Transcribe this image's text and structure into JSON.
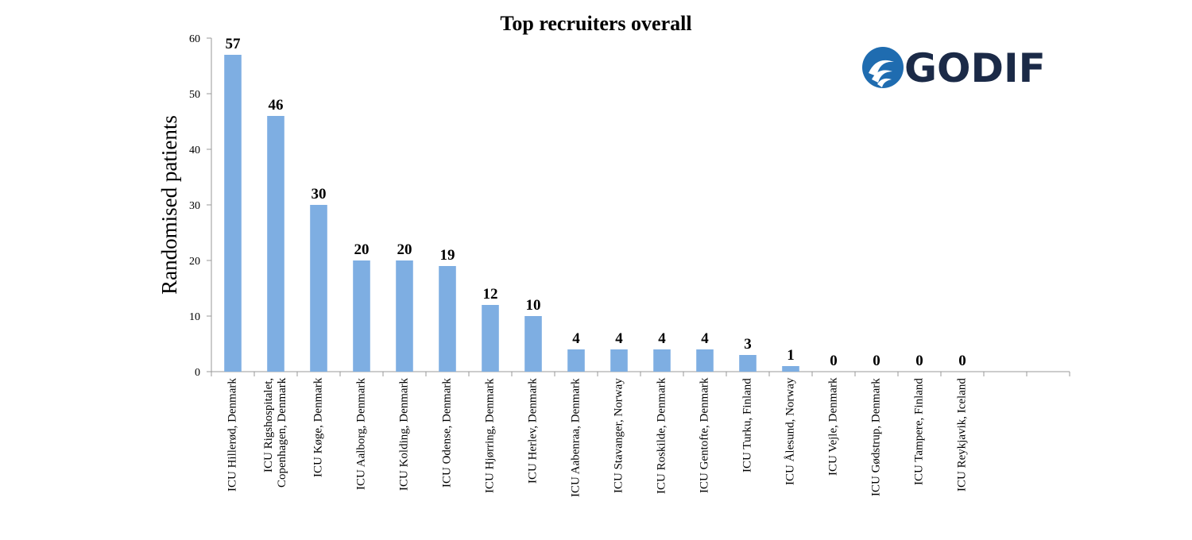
{
  "chart_data": {
    "type": "bar",
    "title": "Top recruiters overall",
    "y_label": "Randomised patients",
    "logo": "GODIF",
    "categories": [
      "ICU Hillerød, Denmark",
      "ICU Rigshospitalet, Copenhagen, Denmark",
      "ICU Køge, Denmark",
      "ICU Aalborg, Denmark",
      "ICU  Kolding, Denmark",
      "ICU Odense, Denmark",
      "ICU Hjørring, Denmark",
      "ICU Herlev, Denmark",
      "ICU Aabenraa, Denmark",
      "ICU Stavanger, Norway",
      "ICU Roskilde, Denmark",
      "ICU Gentofte, Denmark",
      "ICU Turku, Finland",
      "ICU Ålesund, Norway",
      "ICU Vejle, Denmark",
      "ICU Gødstrup, Denmark",
      "ICU Tampere, Finland",
      "ICU Reykjavik, Iceland",
      null,
      null
    ],
    "values": [
      57,
      46,
      30,
      20,
      20,
      19,
      12,
      10,
      4,
      4,
      4,
      4,
      3,
      1,
      0,
      0,
      0,
      0,
      null,
      null
    ],
    "color": "#7eaee2",
    "ylim": [
      0,
      60
    ],
    "yticks": [
      0,
      10,
      20,
      30,
      40,
      50,
      60
    ],
    "grid": false
  }
}
